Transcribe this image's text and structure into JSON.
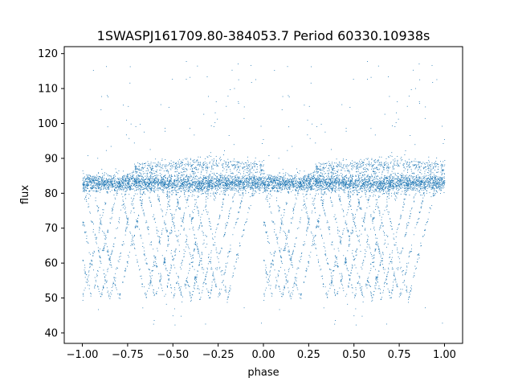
{
  "chart_data": {
    "type": "scatter",
    "title": "1SWASPJ161709.80-384053.7 Period 60330.10938s",
    "xlabel": "phase",
    "ylabel": "flux",
    "xlim": [
      -1.1,
      1.1
    ],
    "ylim": [
      37,
      122
    ],
    "xticks": [
      -1.0,
      -0.75,
      -0.5,
      -0.25,
      0.0,
      0.25,
      0.5,
      0.75,
      1.0
    ],
    "xtick_labels": [
      "−1.00",
      "−0.75",
      "−0.50",
      "−0.25",
      "0.00",
      "0.25",
      "0.50",
      "0.75",
      "1.00"
    ],
    "yticks": [
      40,
      50,
      60,
      70,
      80,
      90,
      100,
      110,
      120
    ],
    "ytick_labels": [
      "40",
      "50",
      "60",
      "70",
      "80",
      "90",
      "100",
      "110",
      "120"
    ],
    "grid": false,
    "point_color": "#1f77b4",
    "series": [
      {
        "description_values": "phase-folded light curve, repeated over two cycles (phase −1..0 and 0..1)",
        "baseline_flux": 83,
        "baseline_spread": [
          80,
          86
        ],
        "upper_band_flux": [
          86,
          90
        ],
        "dip_minimum_flux": 50,
        "dip_phases": [
          -0.9,
          -0.55,
          -0.3,
          0.1,
          0.45,
          0.7
        ],
        "outlier_max_flux": 118,
        "outlier_min_flux": 41,
        "x_range": [
          -1.0,
          1.0
        ]
      }
    ]
  }
}
